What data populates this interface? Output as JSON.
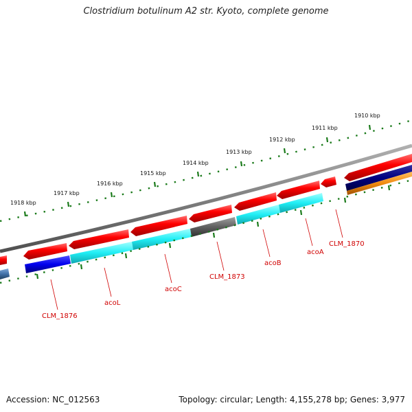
{
  "title": "Clostridium botulinum A2 str. Kyoto, complete genome",
  "footer": {
    "accession": "Accession: NC_012563",
    "topology": "Topology: circular; Length: 4,155,278 bp; Genes: 3,977"
  },
  "scale": {
    "unit": "kbp",
    "ticks": [
      "1910 kbp",
      "1911 kbp",
      "1912 kbp",
      "1913 kbp",
      "1914 kbp",
      "1915 kbp",
      "1916 kbp",
      "1917 kbp",
      "1918 kbp"
    ]
  },
  "genes": [
    {
      "name": "CLM_1876"
    },
    {
      "name": "acoL"
    },
    {
      "name": "acoC"
    },
    {
      "name": "CLM_1873"
    },
    {
      "name": "acoB"
    },
    {
      "name": "acoA"
    },
    {
      "name": "CLM_1870"
    }
  ],
  "colors": {
    "cds": "#e00000",
    "backbone": "#808080",
    "tick": "#1a7a1a",
    "label": "#d00000",
    "cog_blue": "#1010e0",
    "cog_cyan": "#20e8f0",
    "cog_gray": "#606060",
    "cog_navy": "#000080",
    "cog_orange": "#f08a10",
    "cog_steel": "#4070a8"
  }
}
